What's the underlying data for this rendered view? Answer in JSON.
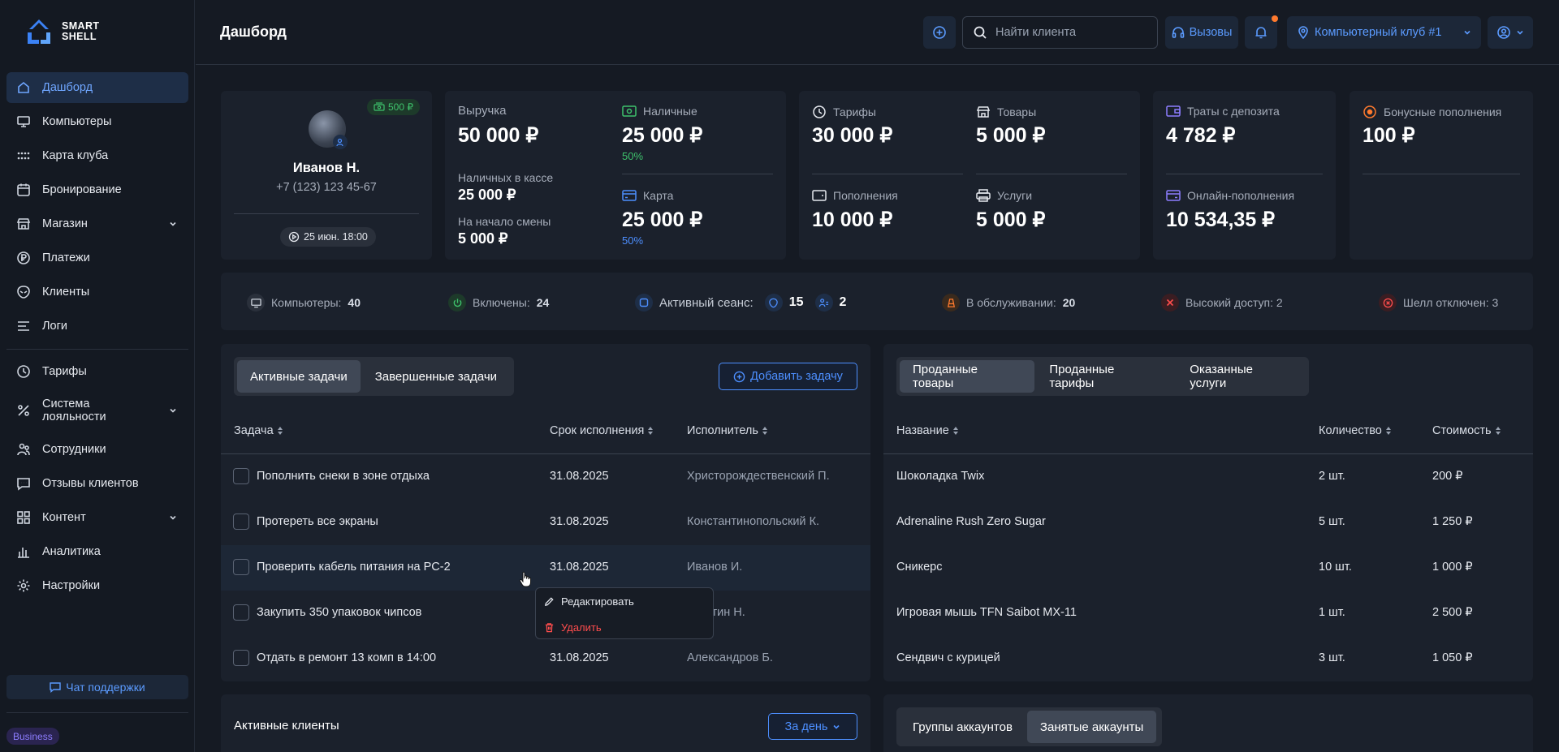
{
  "app": {
    "logo_line1": "SMART",
    "logo_line2": "SHELL",
    "page_title": "Дашборд"
  },
  "sidebar": {
    "items": [
      {
        "label": "Дашборд"
      },
      {
        "label": "Компьютеры"
      },
      {
        "label": "Карта клуба"
      },
      {
        "label": "Бронирование"
      },
      {
        "label": "Магазин"
      },
      {
        "label": "Платежи"
      },
      {
        "label": "Клиенты"
      },
      {
        "label": "Логи"
      },
      {
        "label": "Тарифы"
      },
      {
        "label": "Система лояльности"
      },
      {
        "label": "Сотрудники"
      },
      {
        "label": "Отзывы клиентов"
      },
      {
        "label": "Контент"
      },
      {
        "label": "Аналитика"
      },
      {
        "label": "Настройки"
      }
    ],
    "support_label": "Чат поддержки",
    "plan_badge": "Business"
  },
  "header": {
    "search_placeholder": "Найти клиента",
    "calls_label": "Вызовы",
    "club_label": "Компьютерный клуб #1"
  },
  "profile": {
    "bonus": "500 ₽",
    "name": "Иванов Н.",
    "phone": "+7 (123) 123 45-67",
    "shift": "25 июн. 18:00"
  },
  "revenue": {
    "revenue_label": "Выручка",
    "revenue_value": "50 000 ₽",
    "cash_in_register_label": "Наличных в кассе",
    "cash_in_register_value": "25 000 ₽",
    "shift_start_label": "На начало смены",
    "shift_start_value": "5 000 ₽",
    "cash_label": "Наличные",
    "cash_value": "25 000 ₽",
    "cash_pct": "50%",
    "card_label": "Карта",
    "card_value": "25 000 ₽",
    "card_pct": "50%"
  },
  "sales": {
    "tariffs_label": "Тарифы",
    "tariffs_value": "30 000 ₽",
    "goods_label": "Товары",
    "goods_value": "5 000 ₽",
    "topups_label": "Пополнения",
    "topups_value": "10 000 ₽",
    "services_label": "Услуги",
    "services_value": "5 000 ₽"
  },
  "deposit": {
    "spend_label": "Траты с депозита",
    "spend_value": "4 782 ₽",
    "online_label": "Онлайн-пополнения",
    "online_value": "10 534,35 ₽"
  },
  "bonus": {
    "label": "Бонусные пополнения",
    "value": "100 ₽"
  },
  "stats": {
    "computers_label": "Компьютеры:",
    "computers_value": "40",
    "on_label": "Включены:",
    "on_value": "24",
    "session_label": "Активный сеанс:",
    "session_guest": "15",
    "session_users": "2",
    "service_label": "В обслуживании:",
    "service_value": "20",
    "high_access": "Высокий доступ: 2",
    "shell_off": "Шелл отключен: 3"
  },
  "tasks": {
    "tab_active": "Активные задачи",
    "tab_done": "Завершенные задачи",
    "add_label": "Добавить задачу",
    "col_task": "Задача",
    "col_due": "Срок исполнения",
    "col_assignee": "Исполнитель",
    "rows": [
      {
        "task": "Пополнить снеки в зоне отдыха",
        "due": "31.08.2025",
        "assignee": "Христорождественский П."
      },
      {
        "task": "Протереть все экраны",
        "due": "31.08.2025",
        "assignee": "Константинопольский К."
      },
      {
        "task": "Проверить кабель питания на PC-2",
        "due": "31.08.2025",
        "assignee": "Иванов И."
      },
      {
        "task": "Закупить 350 упаковок чипсов",
        "due": "",
        "assignee": "…тин Н."
      },
      {
        "task": "Отдать в ремонт 13 комп в 14:00",
        "due": "31.08.2025",
        "assignee": "Александров Б."
      }
    ],
    "menu_edit": "Редактировать",
    "menu_delete": "Удалить"
  },
  "sold": {
    "tab_goods": "Проданные товары",
    "tab_tariffs": "Проданные тарифы",
    "tab_services": "Оказанные услуги",
    "col_name": "Название",
    "col_qty": "Количество",
    "col_cost": "Стоимость",
    "rows": [
      {
        "name": "Шоколадка Twix",
        "qty": "2 шт.",
        "cost": "200 ₽"
      },
      {
        "name": "Adrenaline Rush Zero Sugar",
        "qty": "5 шт.",
        "cost": "1 250 ₽"
      },
      {
        "name": "Сникерс",
        "qty": "10 шт.",
        "cost": "1 000 ₽"
      },
      {
        "name": "Игровая мышь TFN Saibot MX-11",
        "qty": "1 шт.",
        "cost": "2 500 ₽"
      },
      {
        "name": "Сендвич с курицей",
        "qty": "3 шт.",
        "cost": "1 050 ₽"
      }
    ]
  },
  "bottom": {
    "active_clients": "Активные клиенты",
    "period": "За день",
    "tab_groups": "Группы аккаунтов",
    "tab_busy": "Занятые аккаунты"
  },
  "colors": {
    "accent": "#4d8fff",
    "green": "#3ec26c",
    "danger": "#ff4d4d",
    "orange": "#ff7a2e"
  }
}
